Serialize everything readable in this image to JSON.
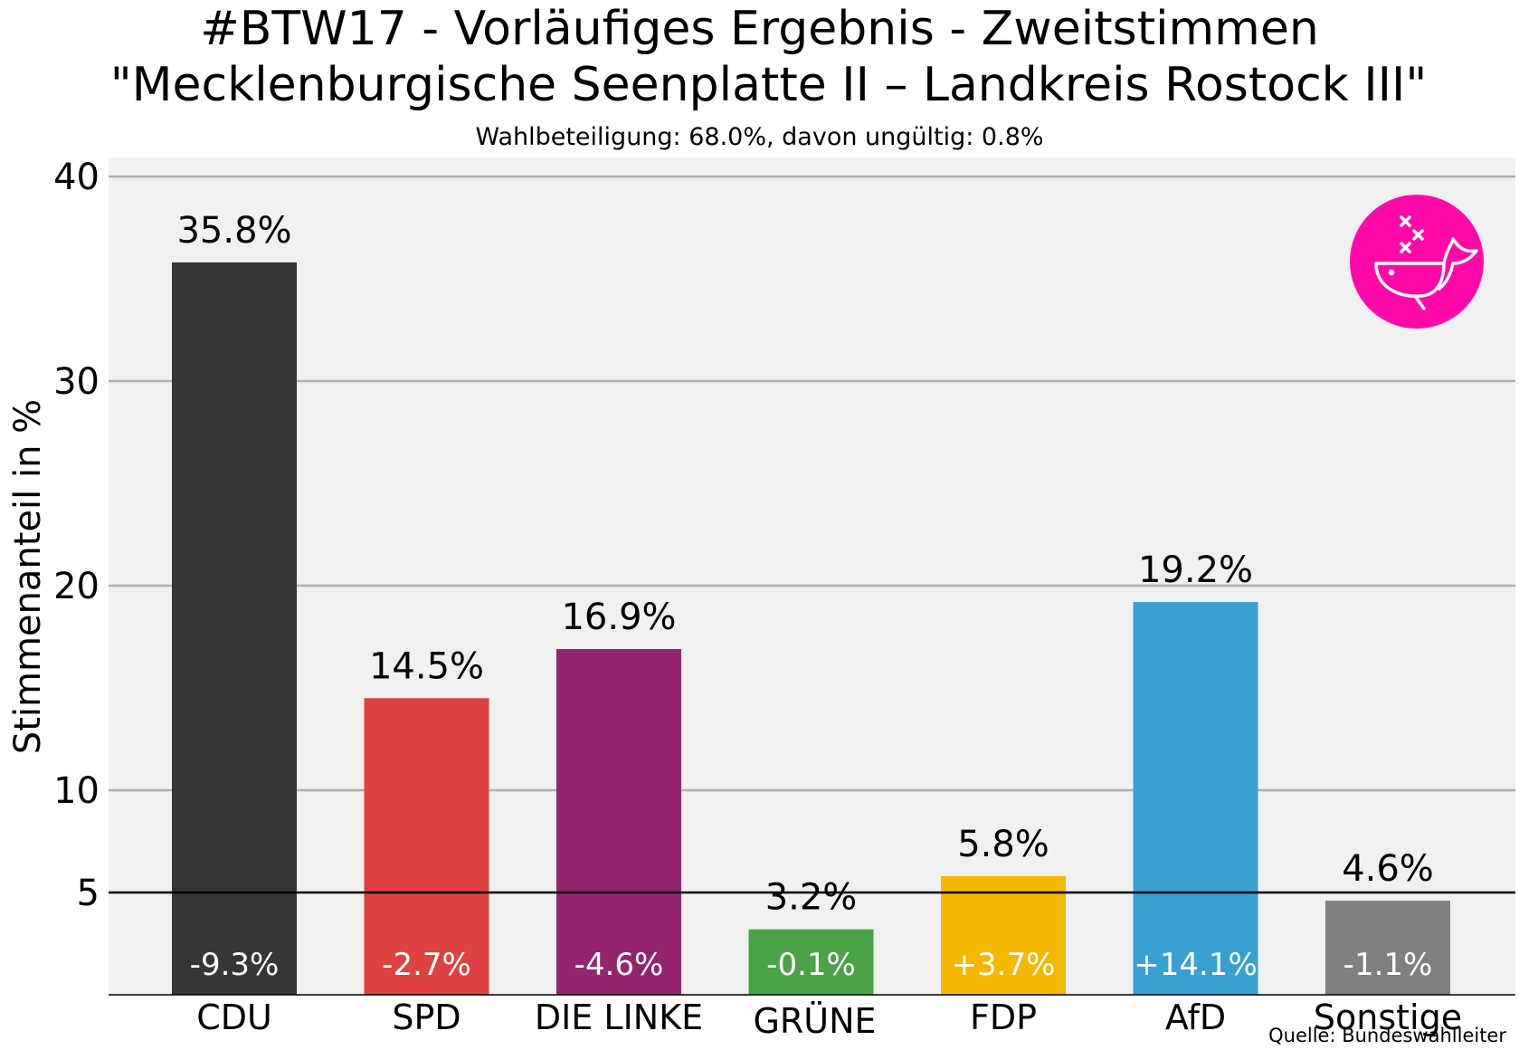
{
  "header": {
    "title_line1": "#BTW17 - Vorläufiges Ergebnis - Zweitstimmen",
    "title_line2": "\"Mecklenburgische Seenplatte II – Landkreis Rostock III\"",
    "subtitle": "Wahlbeteiligung: 68.0%,  davon ungültig: 0.8%"
  },
  "source": "Quelle: Bundeswahlleiter",
  "logo": {
    "icon": "whale-icon",
    "color": "#ff0aa8"
  },
  "chart_data": {
    "type": "bar",
    "ylabel": "Stimmenanteil in %",
    "xlabel": "",
    "ylim": [
      0,
      41
    ],
    "yticks": [
      5,
      10,
      20,
      30,
      40
    ],
    "threshold": 5,
    "grid": true,
    "categories": [
      "CDU",
      "SPD",
      "DIE LINKE",
      "GRÜNE",
      "FDP",
      "AfD",
      "Sonstige"
    ],
    "values": [
      35.8,
      14.5,
      16.9,
      3.2,
      5.8,
      19.2,
      4.6
    ],
    "value_labels": [
      "35.8%",
      "14.5%",
      "16.9%",
      "3.2%",
      "5.8%",
      "19.2%",
      "4.6%"
    ],
    "change_labels": [
      "-9.3%",
      "-2.7%",
      "-4.6%",
      "-0.1%",
      "+3.7%",
      "+14.1%",
      "-1.1%"
    ],
    "colors": [
      "#363636",
      "#de4240",
      "#93256c",
      "#4ca247",
      "#f4b800",
      "#37a2d1",
      "#808080"
    ]
  }
}
